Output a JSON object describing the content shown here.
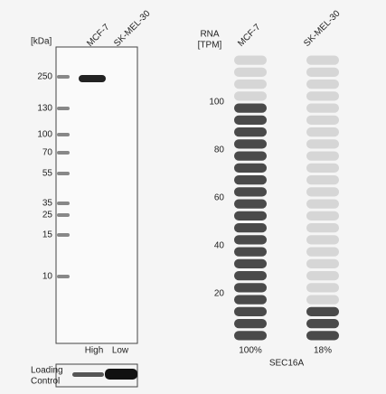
{
  "western_blot": {
    "unit_label": "[kDa]",
    "lanes": [
      "MCF-7",
      "SK-MEL-30"
    ],
    "markers": [
      250,
      130,
      100,
      70,
      55,
      35,
      25,
      15,
      10
    ],
    "lane_levels": [
      "High",
      "Low"
    ],
    "loading_control": [
      "Loading",
      "Control"
    ]
  },
  "chart_data": {
    "type": "bar",
    "y_label": [
      "RNA",
      "[TPM]"
    ],
    "categories": [
      "MCF-7",
      "SK-MEL-30"
    ],
    "values": [
      100,
      18
    ],
    "value_labels": [
      "100%",
      "18%"
    ],
    "gene": "SEC16A",
    "ylim": [
      0,
      120
    ],
    "yticks": [
      20,
      40,
      60,
      80,
      100
    ]
  }
}
